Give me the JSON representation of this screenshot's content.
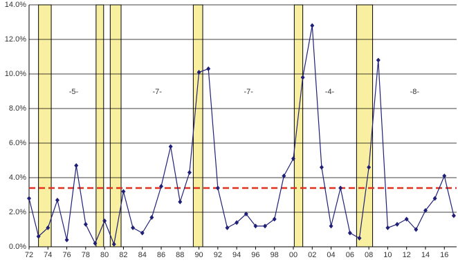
{
  "chart_data": {
    "type": "line",
    "x": [
      1972,
      1973,
      1974,
      1975,
      1976,
      1977,
      1978,
      1979,
      1980,
      1981,
      1982,
      1983,
      1984,
      1985,
      1986,
      1987,
      1988,
      1989,
      1990,
      1991,
      1992,
      1993,
      1994,
      1995,
      1996,
      1997,
      1998,
      1999,
      2000,
      2001,
      2002,
      2003,
      2004,
      2005,
      2006,
      2007,
      2008,
      2009,
      2010,
      2011,
      2012,
      2013,
      2014,
      2015,
      2016,
      2017
    ],
    "series": [
      {
        "color": "#1f1f78",
        "values": [
          2.8,
          0.6,
          1.1,
          2.7,
          0.4,
          4.7,
          1.3,
          0.2,
          1.5,
          0.15,
          3.2,
          1.1,
          0.8,
          1.7,
          3.5,
          5.8,
          2.6,
          4.3,
          10.1,
          10.3,
          3.4,
          1.1,
          1.4,
          1.9,
          1.2,
          1.2,
          1.6,
          4.1,
          5.1,
          9.8,
          12.8,
          4.6,
          1.2,
          3.4,
          0.8,
          0.5,
          4.6,
          10.8,
          1.1,
          1.3,
          1.6,
          1.0,
          2.1,
          2.8,
          4.1,
          1.8
        ]
      }
    ],
    "reference_line": {
      "value": 3.4,
      "color": "#e0301e"
    },
    "bands": [
      [
        1973.0,
        1974.35
      ],
      [
        1979.1,
        1979.9
      ],
      [
        1980.6,
        1981.75
      ],
      [
        1989.4,
        1990.4
      ],
      [
        2000.1,
        2001.0
      ],
      [
        2006.7,
        2008.4
      ]
    ],
    "band_color": "#f8f0a0",
    "annotations": [
      "-5-",
      "-7-",
      "-7-",
      "-4-",
      "-8-"
    ],
    "xlim": [
      1972,
      2017.3
    ],
    "ylim": [
      0,
      14
    ],
    "xticks": [
      {
        "value": 1972,
        "label": "72"
      },
      {
        "value": 1974,
        "label": "74"
      },
      {
        "value": 1976,
        "label": "76"
      },
      {
        "value": 1978,
        "label": "78"
      },
      {
        "value": 1980,
        "label": "80"
      },
      {
        "value": 1982,
        "label": "82"
      },
      {
        "value": 1984,
        "label": "84"
      },
      {
        "value": 1986,
        "label": "86"
      },
      {
        "value": 1988,
        "label": "88"
      },
      {
        "value": 1990,
        "label": "90"
      },
      {
        "value": 1992,
        "label": "92"
      },
      {
        "value": 1994,
        "label": "94"
      },
      {
        "value": 1996,
        "label": "96"
      },
      {
        "value": 1998,
        "label": "98"
      },
      {
        "value": 2000,
        "label": "00"
      },
      {
        "value": 2002,
        "label": "02"
      },
      {
        "value": 2004,
        "label": "04"
      },
      {
        "value": 2006,
        "label": "06"
      },
      {
        "value": 2008,
        "label": "08"
      },
      {
        "value": 2010,
        "label": "10"
      },
      {
        "value": 2012,
        "label": "12"
      },
      {
        "value": 2014,
        "label": "14"
      },
      {
        "value": 2016,
        "label": "16"
      }
    ],
    "yticks": [
      {
        "value": 0,
        "label": "0.0%"
      },
      {
        "value": 2,
        "label": "2.0%"
      },
      {
        "value": 4,
        "label": "4.0%"
      },
      {
        "value": 6,
        "label": "6.0%"
      },
      {
        "value": 8,
        "label": "8.0%"
      },
      {
        "value": 10,
        "label": "10.0%"
      },
      {
        "value": 12,
        "label": "12.0%"
      },
      {
        "value": 14,
        "label": "14.0%"
      }
    ],
    "grid": true
  }
}
